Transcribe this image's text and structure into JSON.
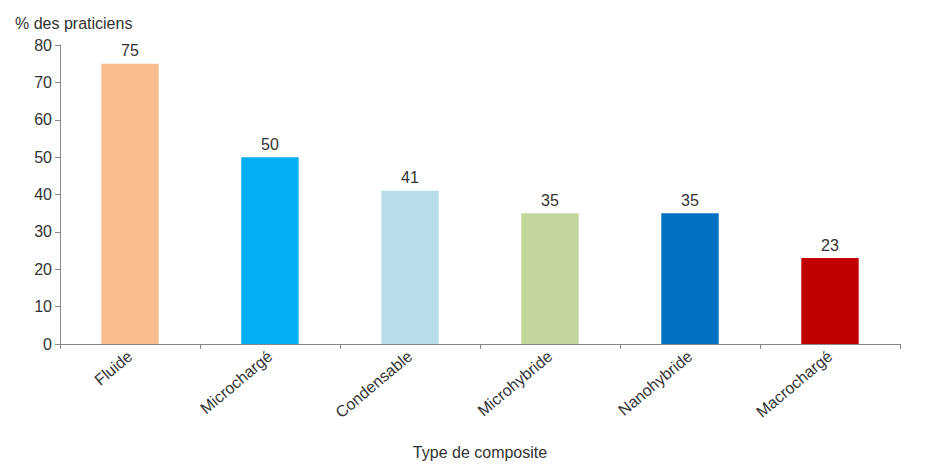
{
  "chart_data": {
    "type": "bar",
    "ylabel": "% des praticiens",
    "xlabel": "Type de composite",
    "categories": [
      "Fluide",
      "Microchargé",
      "Condensable",
      "Microhybride",
      "Nanohybride",
      "Macrochargé"
    ],
    "values": [
      75,
      50,
      41,
      35,
      35,
      23
    ],
    "colors": [
      "#f9be8e",
      "#00b0f0",
      "#b7dee8",
      "#c3d69b",
      "#0070c0",
      "#c00000"
    ],
    "ylim": [
      0,
      80
    ],
    "yticks": [
      0,
      10,
      20,
      30,
      40,
      50,
      60,
      70,
      80
    ],
    "grid": false,
    "data_labels": true
  }
}
